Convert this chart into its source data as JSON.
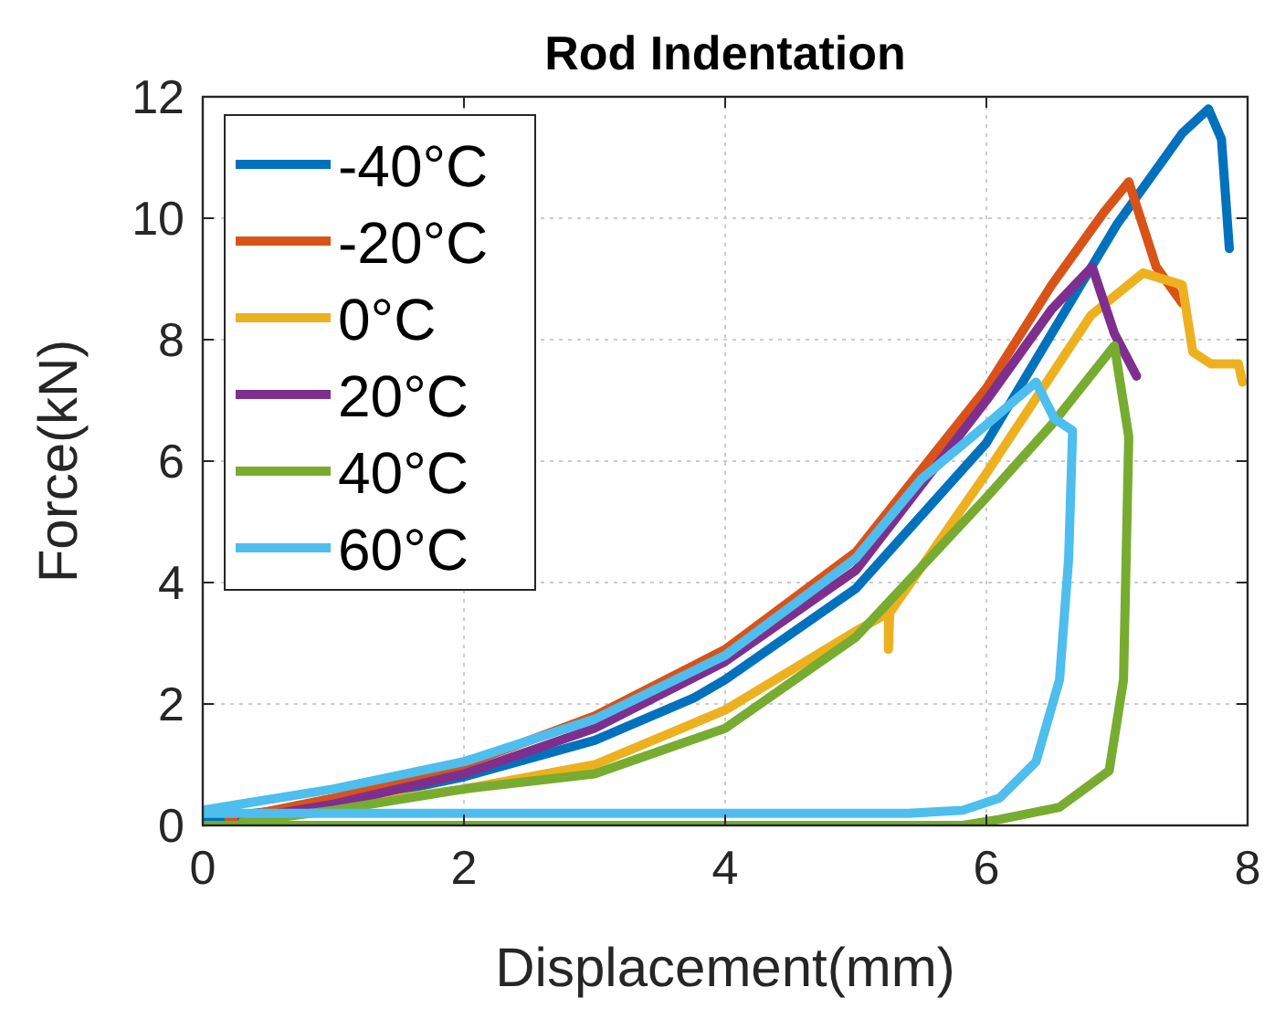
{
  "chart_data": {
    "type": "line",
    "title": "Rod Indentation",
    "xlabel": "Displacement(mm)",
    "ylabel": "Force(kN)",
    "xlim": [
      0,
      8
    ],
    "xticks": [
      0,
      2,
      4,
      6,
      8
    ],
    "ylim": [
      0,
      12
    ],
    "yticks": [
      0,
      2,
      4,
      6,
      8,
      10,
      12
    ],
    "grid": true,
    "legend": "top left",
    "line_style": "solid",
    "marker": "none",
    "series": [
      {
        "name": "-40°C",
        "color": "#0072bd",
        "x": [
          0,
          1,
          2,
          3,
          3.76,
          4,
          5,
          6,
          7,
          7.5,
          7.7,
          7.8,
          7.86
        ],
        "values": [
          0.1,
          0.35,
          0.8,
          1.4,
          2.1,
          2.4,
          3.9,
          6.3,
          9.9,
          11.4,
          11.8,
          11.3,
          9.5
        ]
      },
      {
        "name": "-20°C",
        "color": "#d95319",
        "x": [
          0.2,
          1,
          2,
          3,
          4,
          5,
          6,
          6.5,
          6.9,
          7.09,
          7.3,
          7.5
        ],
        "values": [
          0.1,
          0.45,
          1,
          1.8,
          2.9,
          4.5,
          7.2,
          8.9,
          10.1,
          10.6,
          9.2,
          8.6
        ]
      },
      {
        "name": "0°C",
        "color": "#edb120",
        "x": [
          0.3,
          1,
          2,
          3,
          4,
          5,
          5.25,
          5.25,
          5.26,
          6,
          6.8,
          7.2,
          7.5,
          7.58,
          7.72,
          7.93,
          7.96
        ],
        "values": [
          0.05,
          0.3,
          0.6,
          1,
          1.9,
          3.2,
          3.5,
          2.9,
          3.5,
          5.8,
          8.4,
          9.1,
          8.9,
          7.8,
          7.6,
          7.6,
          7.3
        ]
      },
      {
        "name": "20°C",
        "color": "#7e2f8e",
        "x": [
          0.3,
          1,
          2,
          3,
          4,
          5,
          6,
          6.5,
          6.81,
          6.98,
          7.15
        ],
        "values": [
          0.1,
          0.35,
          0.85,
          1.6,
          2.7,
          4.2,
          7,
          8.5,
          9.2,
          8.1,
          7.4
        ]
      },
      {
        "name": "40°C",
        "color": "#77ac30",
        "x": [
          0.3,
          1,
          2,
          3,
          4,
          5,
          6,
          6.5,
          6.98,
          7.09,
          7.05,
          6.94,
          6.56,
          6.1,
          5.82,
          0
        ],
        "values": [
          0.05,
          0.25,
          0.6,
          0.85,
          1.6,
          3.1,
          5.4,
          6.6,
          7.9,
          6.4,
          2.4,
          0.9,
          0.3,
          0.1,
          0,
          0
        ]
      },
      {
        "name": "60°C",
        "color": "#4dbeee",
        "x": [
          0,
          1,
          2,
          3,
          4,
          5,
          5.5,
          6,
          6.38,
          6.52,
          6.66,
          6.63,
          6.56,
          6.38,
          6.1,
          5.82,
          5.4,
          0
        ],
        "values": [
          0.25,
          0.6,
          1.05,
          1.75,
          2.8,
          4.4,
          5.7,
          6.6,
          7.3,
          6.7,
          6.5,
          4.4,
          2.4,
          1.05,
          0.45,
          0.25,
          0.2,
          0.2
        ]
      }
    ]
  }
}
